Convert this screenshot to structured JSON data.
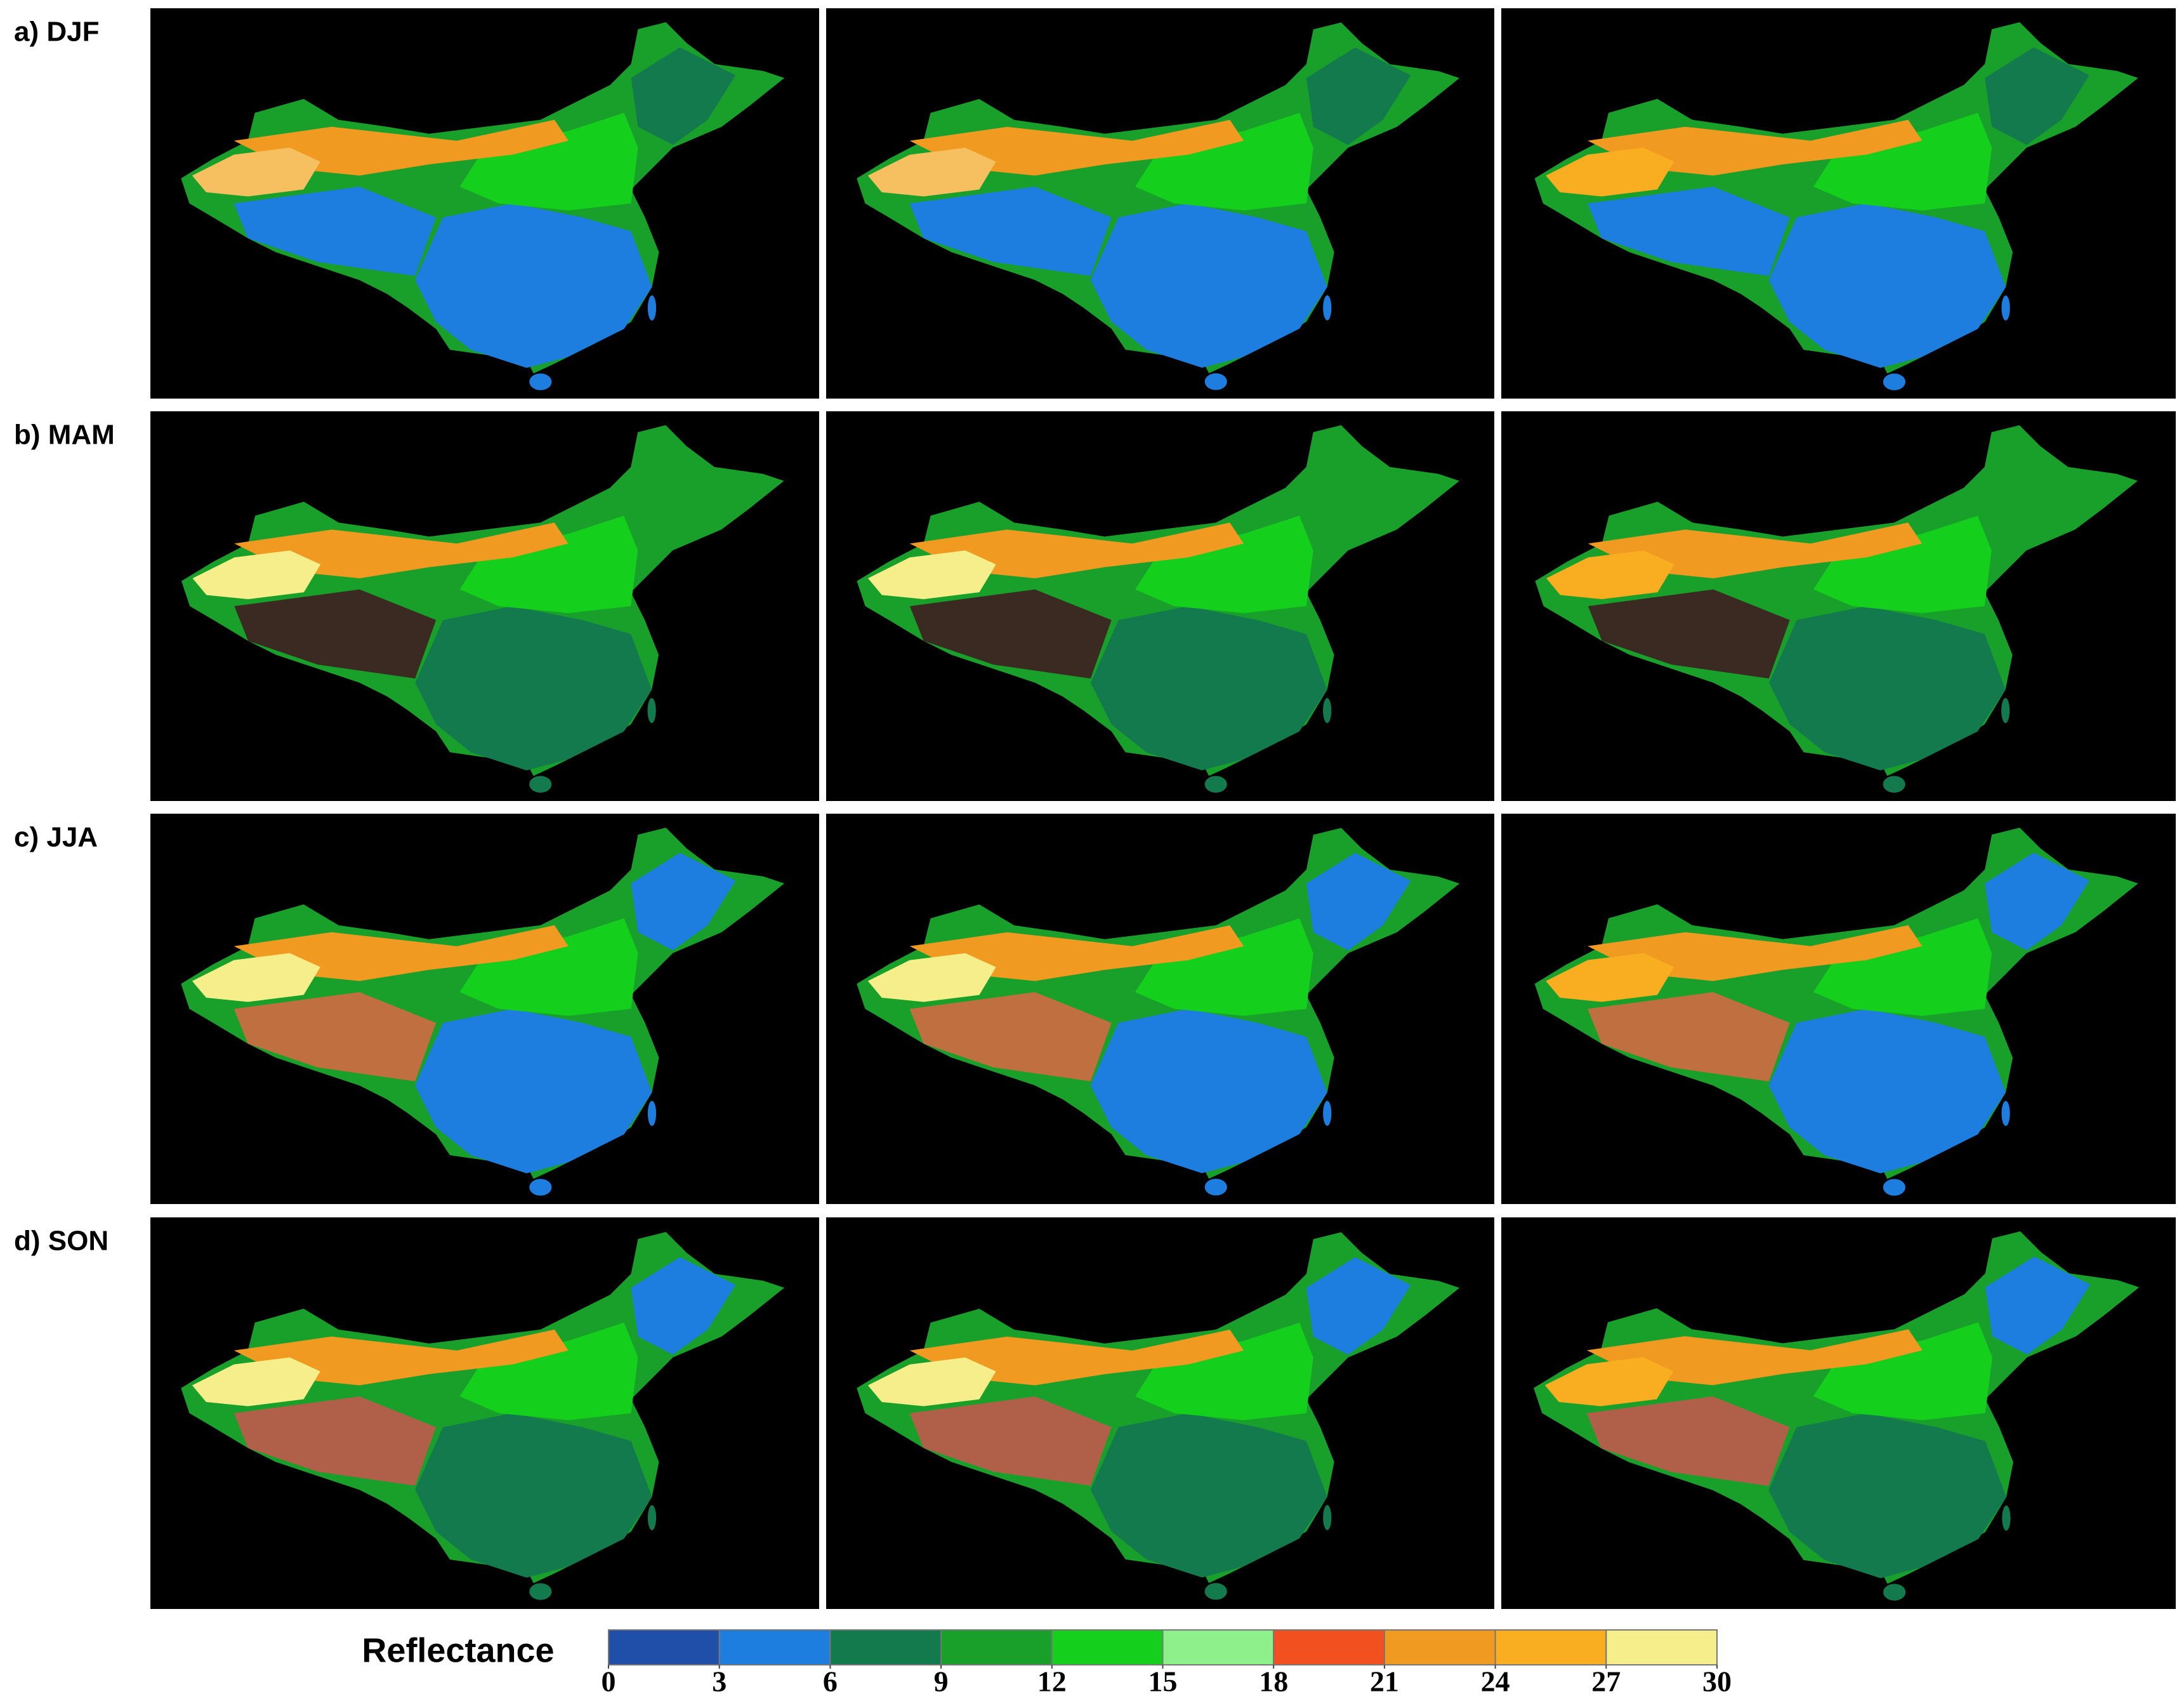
{
  "row_labels": [
    "a) DJF",
    "b) MAM",
    "c) JJA",
    "d) SON"
  ],
  "colorbar": {
    "title": "Reflectance",
    "bounds": [
      0,
      3,
      6,
      9,
      12,
      15,
      18,
      21,
      24,
      27,
      30
    ],
    "colors": [
      "#1f4fa8",
      "#1e7ee0",
      "#137a4e",
      "#18a02a",
      "#14cf1c",
      "#8ef08a",
      "#f2501e",
      "#f09a22",
      "#f8ae20",
      "#f6ee8a"
    ]
  }
}
